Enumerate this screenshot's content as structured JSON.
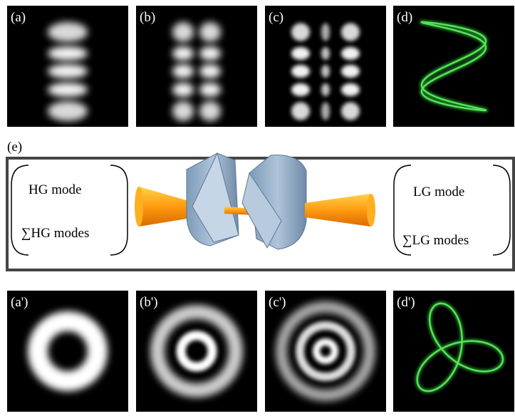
{
  "top_panels": [
    {
      "label": "(a)"
    },
    {
      "label": "(b)"
    },
    {
      "label": "(c)"
    },
    {
      "label": "(d)"
    }
  ],
  "converter": {
    "label": "(e)",
    "left": {
      "line1": "HG mode",
      "line2": "∑HG modes"
    },
    "right": {
      "line1": "LG mode",
      "line2": "∑LG modes"
    }
  },
  "bottom_panels": [
    {
      "label": "(a')"
    },
    {
      "label": "(b')"
    },
    {
      "label": "(c')"
    },
    {
      "label": "(d')"
    }
  ]
}
